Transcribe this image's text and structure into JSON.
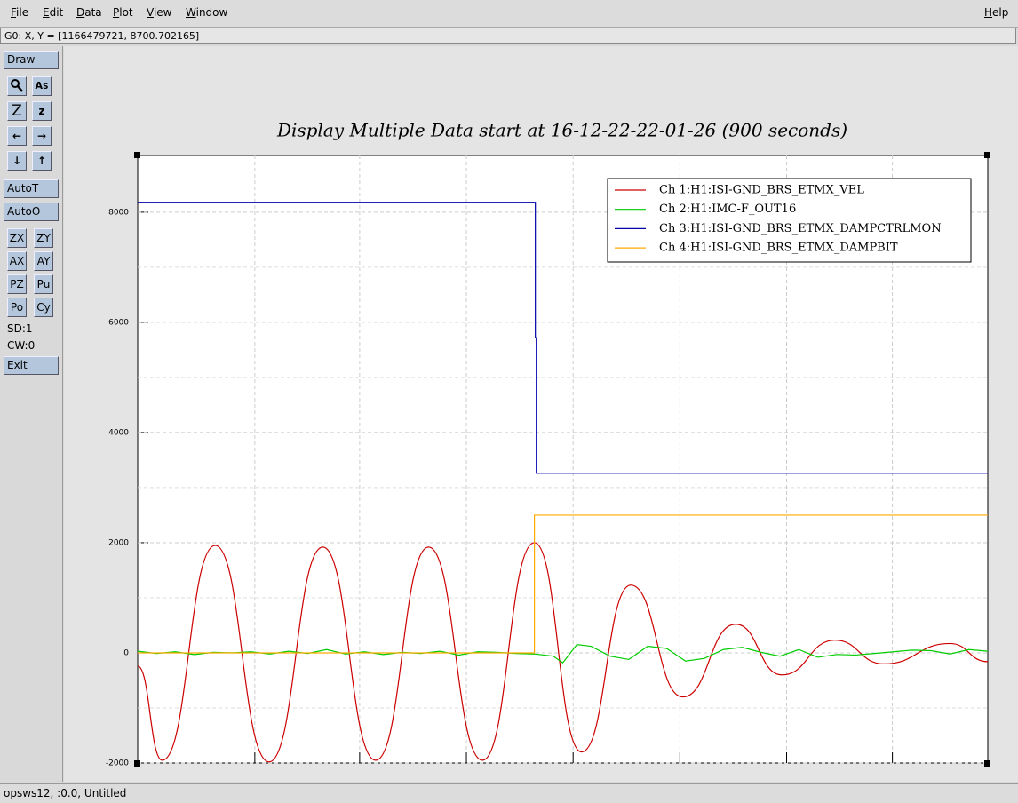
{
  "menu": {
    "items": [
      "File",
      "Edit",
      "Data",
      "Plot",
      "View",
      "Window"
    ],
    "help": "Help"
  },
  "status": "G0: X, Y = [1166479721, 8700.702165]",
  "footer": "opsws12, :0.0, Untitled",
  "toolbar": {
    "draw": "Draw",
    "zoom_big": "Z",
    "zoom_small": "z",
    "auto_t": "AutoT",
    "auto_o": "AutoO",
    "buttons": [
      "ZX",
      "ZY",
      "AX",
      "AY",
      "PZ",
      "Pu",
      "Po",
      "Cy"
    ],
    "sd": "SD:1",
    "cw": "CW:0",
    "exit": "Exit"
  },
  "chart_data": {
    "type": "line",
    "title": "Display Multiple Data start at 16-12-22-22-01-26 (900 seconds)",
    "xlim": [
      0,
      900
    ],
    "xticks": [
      124,
      235,
      348,
      461,
      574,
      687,
      799
    ],
    "ylim": [
      -2000,
      9030
    ],
    "yticks": [
      -2000,
      0,
      2000,
      4000,
      6000,
      8000
    ],
    "grid": true,
    "series": [
      {
        "name": "Ch 1:H1:ISI-GND_BRS_ETMX_VEL",
        "color": "#cc0000",
        "curve": "smooth",
        "x": [
          0,
          26,
          82,
          139,
          196,
          252,
          308,
          365,
          420,
          470,
          522,
          577,
          633,
          682,
          738,
          790,
          860,
          900
        ],
        "values": [
          -240,
          -1950,
          1950,
          -1980,
          1920,
          -1950,
          1920,
          -1950,
          2000,
          -1800,
          1230,
          -800,
          520,
          -400,
          230,
          -200,
          170,
          -160
        ]
      },
      {
        "name": "Ch 2:H1:IMC-F_OUT16",
        "color": "#00cc00",
        "curve": "linear",
        "x": [
          0,
          20,
          40,
          60,
          80,
          100,
          120,
          140,
          160,
          180,
          200,
          220,
          240,
          260,
          280,
          300,
          320,
          340,
          360,
          380,
          400,
          420,
          440,
          450,
          465,
          480,
          500,
          520,
          540,
          560,
          580,
          600,
          620,
          640,
          660,
          680,
          700,
          720,
          740,
          760,
          780,
          800,
          820,
          840,
          860,
          880,
          900
        ],
        "values": [
          30,
          -10,
          20,
          -30,
          10,
          0,
          20,
          -20,
          30,
          -10,
          60,
          -20,
          20,
          -30,
          10,
          -10,
          30,
          -40,
          20,
          10,
          -10,
          -20,
          -60,
          -180,
          150,
          120,
          -60,
          -120,
          120,
          80,
          -150,
          -100,
          60,
          100,
          10,
          -60,
          60,
          -80,
          -30,
          -40,
          -10,
          20,
          50,
          40,
          -20,
          60,
          30
        ]
      },
      {
        "name": "Ch 3:H1:ISI-GND_BRS_ETMX_DAMPCTRLMON",
        "color": "#0000aa",
        "curve": "linear",
        "x": [
          0,
          421,
          421,
          422,
          422,
          900
        ],
        "values": [
          8180,
          8180,
          5720,
          5720,
          3260,
          3260
        ]
      },
      {
        "name": "Ch 4:H1:ISI-GND_BRS_ETMX_DAMPBIT",
        "color": "#ffaa00",
        "curve": "linear",
        "x": [
          0,
          420,
          420,
          900
        ],
        "values": [
          0,
          0,
          2500,
          2500
        ]
      }
    ]
  }
}
